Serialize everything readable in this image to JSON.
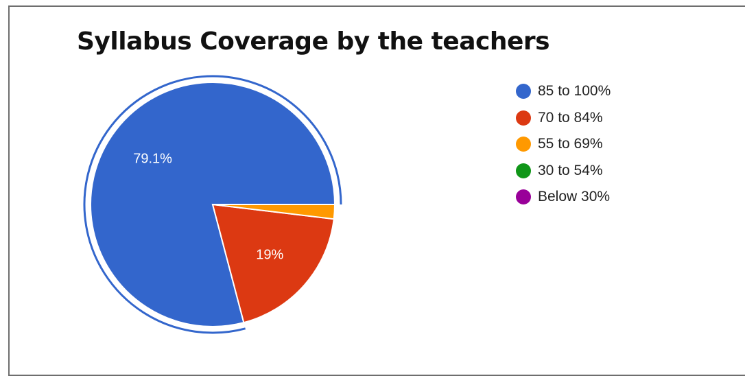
{
  "chart_data": {
    "type": "pie",
    "title": "Syllabus Coverage by the teachers",
    "categories": [
      "85 to 100%",
      "70 to 84%",
      "55 to 69%",
      "30 to 54%",
      "Below 30%"
    ],
    "values": [
      79.1,
      19.0,
      1.9,
      0,
      0
    ],
    "data_labels": [
      "79.1%",
      "19%",
      "",
      "",
      ""
    ],
    "colors": [
      "#3366cc",
      "#dc3912",
      "#ff9900",
      "#109618",
      "#990099"
    ],
    "exploded_slice": "85 to 100%",
    "legend_position": "right"
  }
}
